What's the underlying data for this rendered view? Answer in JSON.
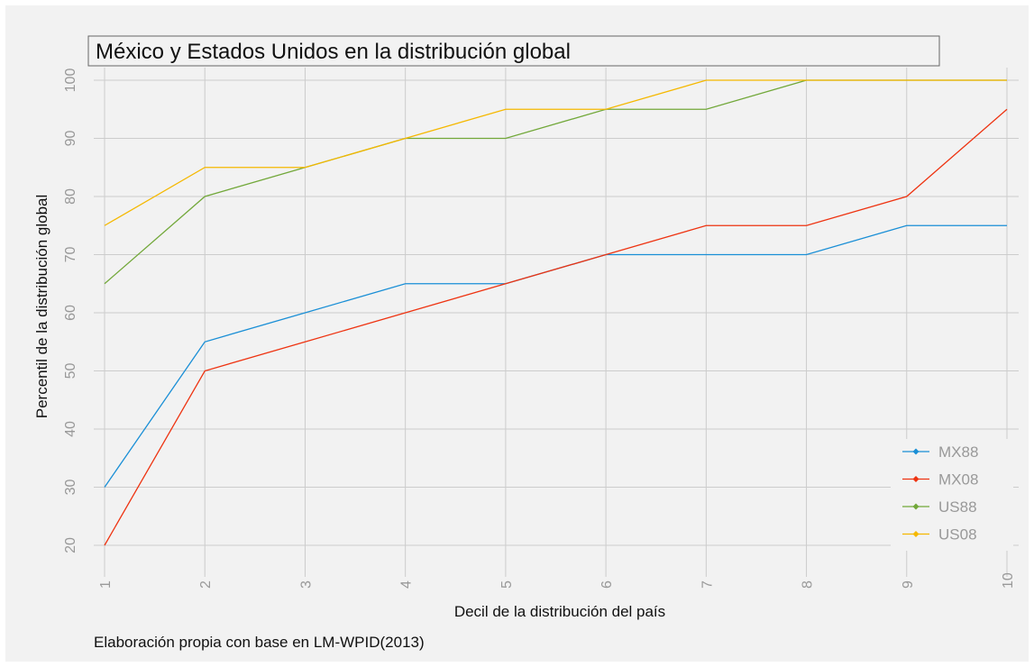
{
  "chart_data": {
    "type": "line",
    "title": "México y Estados Unidos en la distribución global",
    "xlabel": "Decil de la distribución del país",
    "ylabel": "Percentil de la distribución global",
    "caption": "Elaboración propia con base en LM-WPID(2013)",
    "x": [
      1,
      2,
      3,
      4,
      5,
      6,
      7,
      8,
      9,
      10
    ],
    "xlim": [
      1,
      10
    ],
    "ylim": [
      20,
      100
    ],
    "yticks": [
      20,
      30,
      40,
      50,
      60,
      70,
      80,
      90,
      100
    ],
    "grid": true,
    "legend_position": "bottom-right",
    "series": [
      {
        "name": "MX88",
        "color": "#1a8fd6",
        "values": [
          30,
          55,
          60,
          65,
          65,
          70,
          70,
          70,
          75,
          75
        ]
      },
      {
        "name": "MX08",
        "color": "#ee3311",
        "values": [
          20,
          50,
          55,
          60,
          65,
          70,
          75,
          75,
          80,
          95
        ]
      },
      {
        "name": "US88",
        "color": "#72a83a",
        "values": [
          65,
          80,
          85,
          90,
          90,
          95,
          95,
          100,
          100,
          100
        ]
      },
      {
        "name": "US08",
        "color": "#f5b800",
        "values": [
          75,
          85,
          85,
          90,
          95,
          95,
          100,
          100,
          100,
          100
        ]
      }
    ]
  }
}
